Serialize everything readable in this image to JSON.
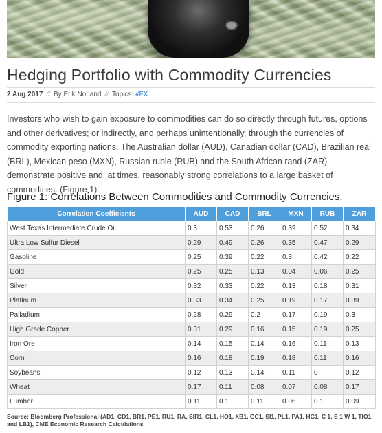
{
  "article": {
    "title": "Hedging Portfolio with Commodity Currencies",
    "date": "2 Aug 2017",
    "author": "By Erik Norland",
    "topics_label": "Topics:",
    "topic_link": "#FX",
    "sep": "//",
    "intro": "Investors who wish to gain exposure to commodities can do so directly through futures, options and other derivatives; or indirectly, and perhaps unintentionally, through the currencies of commodity exporting nations.  The Australian dollar (AUD), Canadian dollar (CAD), Brazilian real (BRL), Mexican peso (MXN), Russian ruble (RUB) and the South African rand (ZAR) demonstrate positive and, at times, reasonably strong correlations to a large basket of commodities. (Figure 1).",
    "figure_title": "Figure 1: Correlations Between Commodities and Commodity Currencies.",
    "source": "Source: Bloomberg Professional (AD1, CD1, BR1, PE1, RU1, RA, SIR1, CL1, HO1, XB1, GC1, SI1, PL1, PA1, HG1, C 1, S 1 W 1, TIO1 and LB1), CME Economic Research Calculations"
  },
  "table": {
    "headers": [
      "Correlation Coefficients",
      "AUD",
      "CAD",
      "BRL",
      "MXN",
      "RUB",
      "ZAR"
    ],
    "rows": [
      [
        "West Texas Intermediate Crude Oil",
        "0.3",
        "0.53",
        "0.26",
        "0.39",
        "0.52",
        "0.34"
      ],
      [
        "Ultra Low Sulfur Diesel",
        "0.29",
        "0.49",
        "0.26",
        "0.35",
        "0.47",
        "0.29"
      ],
      [
        "Gasoline",
        "0.25",
        "0.39",
        "0.22",
        "0.3",
        "0.42",
        "0.22"
      ],
      [
        "Gold",
        "0.25",
        "0.25",
        "0.13",
        "0.04",
        "0.06",
        "0.25"
      ],
      [
        "Silver",
        "0.32",
        "0.33",
        "0.22",
        "0.13",
        "0.18",
        "0.31"
      ],
      [
        "Platinum",
        "0.33",
        "0.34",
        "0.25",
        "0.19",
        "0.17",
        "0.39"
      ],
      [
        "Palladium",
        "0.28",
        "0.29",
        "0.2",
        "0.17",
        "0.19",
        "0.3"
      ],
      [
        "High Grade Copper",
        "0.31",
        "0.29",
        "0.16",
        "0.15",
        "0.19",
        "0.25"
      ],
      [
        "Iron Ore",
        "0.14",
        "0.15",
        "0.14",
        "0.16",
        "0.11",
        "0.13"
      ],
      [
        "Corn",
        "0.16",
        "0.18",
        "0.19",
        "0.18",
        "0.11",
        "0.16"
      ],
      [
        "Soybeans",
        "0.12",
        "0.13",
        "0.14",
        "0.11",
        "0",
        "0.12"
      ],
      [
        "Wheat",
        "0.17",
        "0.11",
        "0.08",
        "0.07",
        "0.08",
        "0.17"
      ],
      [
        "Lumber",
        "0.11",
        "0.1",
        "0.11",
        "0.06",
        "0.1",
        "0.09"
      ]
    ]
  }
}
